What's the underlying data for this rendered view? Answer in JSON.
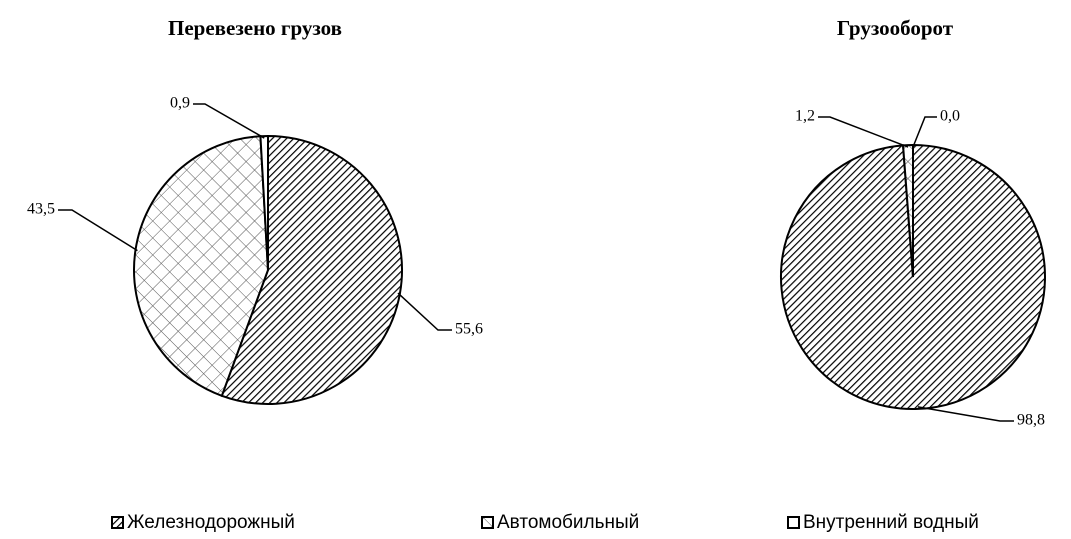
{
  "legend": [
    "Железнодорожный",
    "Автомобильный",
    "Внутренний водный"
  ],
  "patterns": [
    "diagonal",
    "crosshatch",
    "none"
  ],
  "chart_data": [
    {
      "type": "pie",
      "title": "Перевезено грузов",
      "values": [
        55.6,
        43.5,
        0.9
      ],
      "value_labels": [
        "55,6",
        "43,5",
        "0,9"
      ]
    },
    {
      "type": "pie",
      "title": "Грузооборот",
      "values": [
        98.8,
        1.2,
        0.0
      ],
      "value_labels": [
        "98,8",
        "1,2",
        "0,0"
      ]
    }
  ]
}
